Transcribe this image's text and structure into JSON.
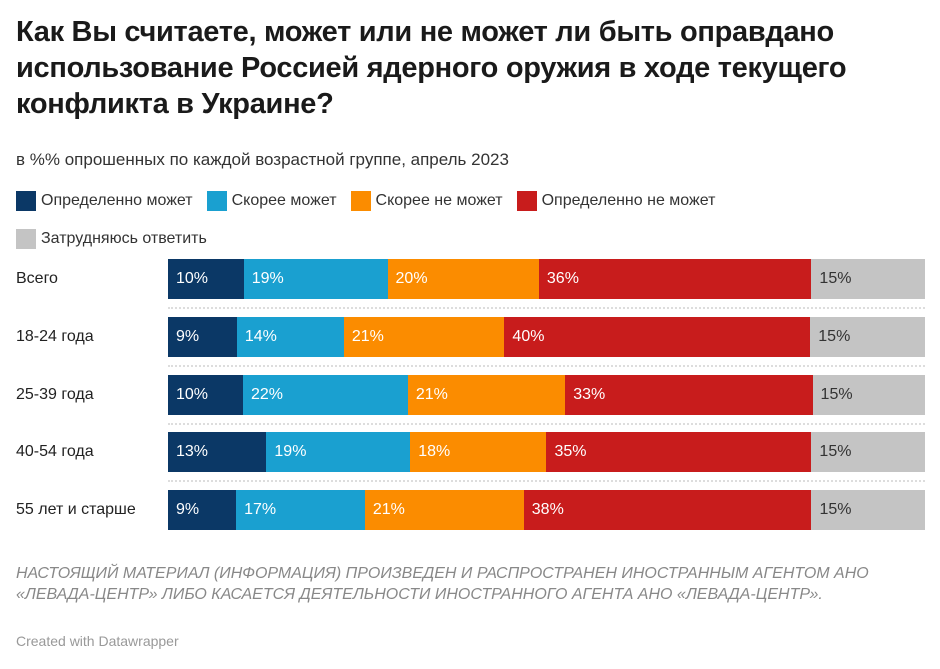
{
  "title": "Как Вы считаете, может или не может ли быть оправдано использование Россией ядерного оружия в ходе текущего конфликта в Украине?",
  "subtitle": "в %% опрошенных по каждой возрастной группе, апрель 2023",
  "note": "НАСТОЯЩИЙ МАТЕРИАЛ (ИНФОРМАЦИЯ) ПРОИЗВЕДЕН И РАСПРОСТРАНЕН ИНОСТРАННЫМ АГЕНТОМ АНО «ЛЕВАДА-ЦЕНТР» ЛИБО КАСАЕТСЯ ДЕЯТЕЛЬНОСТИ ИНОСТРАННОГО АГЕНТА АНО «ЛЕВАДА-ЦЕНТР».",
  "credit": "Created with Datawrapper",
  "chart_data": {
    "type": "bar",
    "orientation": "horizontal-stacked",
    "categories": [
      "Всего",
      "18-24 года",
      "25-39 года",
      "40-54 года",
      "55 лет и старше"
    ],
    "series": [
      {
        "name": "Определенно может",
        "color": "#0b3866",
        "label_color": "#ffffff",
        "values": [
          10,
          9,
          10,
          13,
          9
        ]
      },
      {
        "name": "Скорее может",
        "color": "#1aa0d0",
        "label_color": "#ffffff",
        "values": [
          19,
          14,
          22,
          19,
          17
        ]
      },
      {
        "name": "Скорее не может",
        "color": "#fb8c00",
        "label_color": "#ffffff",
        "values": [
          20,
          21,
          21,
          18,
          21
        ]
      },
      {
        "name": "Определенно не может",
        "color": "#c81c1c",
        "label_color": "#ffffff",
        "values": [
          36,
          40,
          33,
          35,
          38
        ]
      },
      {
        "name": "Затрудняюсь ответить",
        "color": "#c4c4c4",
        "label_color": "#333333",
        "values": [
          15,
          15,
          15,
          15,
          15
        ]
      }
    ],
    "value_suffix": "%",
    "legend": "top",
    "grid": false
  }
}
